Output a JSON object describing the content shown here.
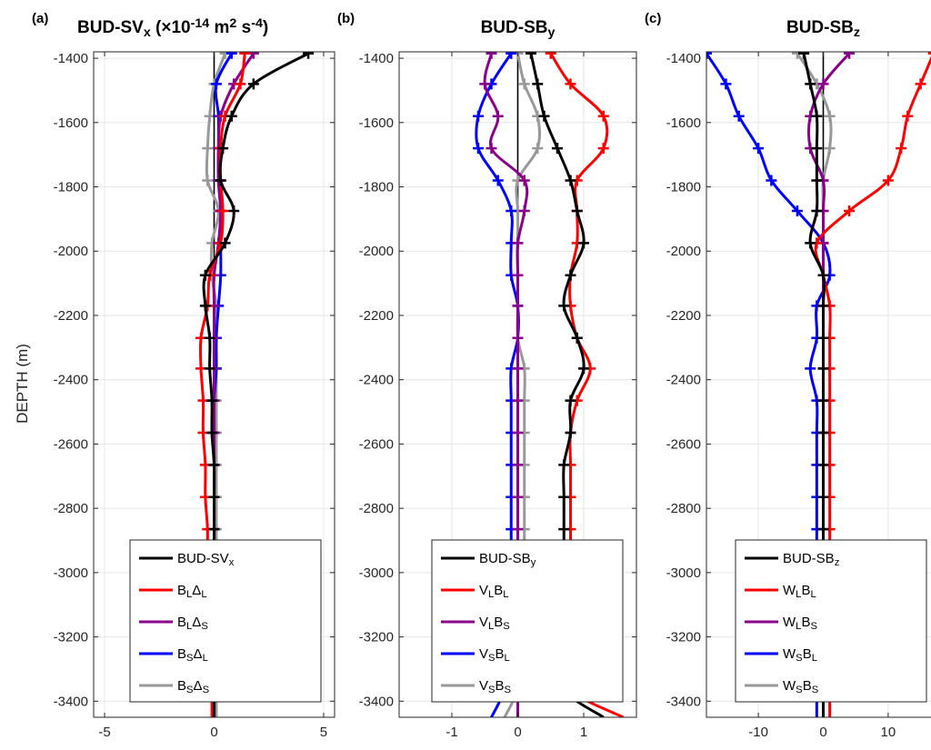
{
  "figure": {
    "ylabel": "DEPTH (m)",
    "panels": [
      {
        "label": "(a)",
        "title_main": "BUD-SV",
        "title_sub": "x",
        "title_units": " (×10",
        "title_units_exp": "-14",
        "title_units_mid": " m",
        "title_units_exp2": "2",
        "title_units_end": " s",
        "title_units_exp3": "-4",
        "title_units_close": ")"
      },
      {
        "label": "(b)",
        "title_main": "BUD-SB",
        "title_sub": "y"
      },
      {
        "label": "(c)",
        "title_main": "BUD-SB",
        "title_sub": "z"
      }
    ]
  },
  "chart_data": [
    {
      "type": "line",
      "panel": "a",
      "xlim": [
        -5.5,
        5.5
      ],
      "ylim": [
        -3450,
        -1380
      ],
      "xticks": [
        "-5",
        "0",
        "5"
      ],
      "xtick_values": [
        -5,
        0,
        5
      ],
      "yticks": [
        "-1400",
        "-1600",
        "-1800",
        "-2000",
        "-2200",
        "-2400",
        "-2600",
        "-2800",
        "-3000",
        "-3200",
        "-3400"
      ],
      "ytick_values": [
        -1400,
        -1600,
        -1800,
        -2000,
        -2200,
        -2400,
        -2600,
        -2800,
        -3000,
        -3200,
        -3400
      ],
      "grid": true,
      "legend_position": "bottom-right",
      "depths": [
        -1385,
        -1480,
        -1580,
        -1680,
        -1780,
        -1875,
        -1975,
        -2075,
        -2170,
        -2270,
        -2365,
        -2465,
        -2565,
        -2665,
        -2765,
        -2865,
        -2965,
        -3065,
        -3165,
        -3265,
        -3365,
        -3450
      ],
      "series": [
        {
          "name": "BUD-SV",
          "name_sub": "x",
          "color": "#000000",
          "values": [
            4.3,
            1.8,
            0.8,
            0.4,
            0.3,
            0.9,
            0.5,
            -0.4,
            -0.4,
            -0.2,
            -0.2,
            -0.1,
            -0.1,
            0.0,
            0.0,
            0.0,
            0.0,
            0.0,
            0.0,
            0.0,
            0.0,
            0.0
          ]
        },
        {
          "name": "B",
          "name_sub": "L",
          "name2": "Δ",
          "name2_sub": "L",
          "color": "#ff0000",
          "values": [
            1.4,
            1.2,
            0.5,
            0.3,
            0.3,
            0.4,
            0.3,
            -0.2,
            -0.3,
            -0.6,
            -0.6,
            -0.5,
            -0.5,
            -0.4,
            -0.4,
            -0.3,
            -0.3,
            -0.2,
            -0.2,
            -0.1,
            -0.1,
            -0.1
          ]
        },
        {
          "name": "B",
          "name_sub": "L",
          "name2": "Δ",
          "name2_sub": "S",
          "color": "#8b008b",
          "values": [
            1.8,
            0.9,
            0.3,
            0.2,
            0.2,
            0.3,
            0.2,
            0.0,
            0.0,
            0.0,
            0.0,
            0.0,
            0.0,
            0.0,
            0.0,
            0.0,
            0.0,
            0.0,
            0.0,
            0.0,
            0.0,
            0.0
          ]
        },
        {
          "name": "B",
          "name_sub": "S",
          "name2": "Δ",
          "name2_sub": "L",
          "color": "#0000ff",
          "values": [
            0.8,
            0.1,
            0.2,
            0.2,
            0.2,
            0.3,
            0.3,
            0.3,
            0.2,
            0.1,
            0.1,
            0.0,
            0.0,
            0.0,
            0.0,
            0.0,
            0.0,
            0.0,
            0.0,
            0.0,
            0.0,
            0.0
          ]
        },
        {
          "name": "B",
          "name_sub": "S",
          "name2": "Δ",
          "name2_sub": "S",
          "color": "#999999",
          "values": [
            0.5,
            0.0,
            -0.2,
            -0.3,
            -0.3,
            0.2,
            -0.1,
            -0.1,
            0.1,
            0.1,
            0.1,
            0.1,
            0.1,
            0.1,
            0.1,
            0.1,
            0.1,
            0.1,
            0.1,
            0.1,
            0.1,
            0.1
          ]
        }
      ]
    },
    {
      "type": "line",
      "panel": "b",
      "xlim": [
        -1.8,
        1.8
      ],
      "ylim": [
        -3450,
        -1380
      ],
      "xticks": [
        "-1",
        "0",
        "1"
      ],
      "xtick_values": [
        -1,
        0,
        1
      ],
      "yticks": [
        "-1400",
        "-1600",
        "-1800",
        "-2000",
        "-2200",
        "-2400",
        "-2600",
        "-2800",
        "-3000",
        "-3200",
        "-3400"
      ],
      "ytick_values": [
        -1400,
        -1600,
        -1800,
        -2000,
        -2200,
        -2400,
        -2600,
        -2800,
        -3000,
        -3200,
        -3400
      ],
      "grid": true,
      "legend_position": "bottom-right",
      "depths": [
        -1385,
        -1480,
        -1580,
        -1680,
        -1780,
        -1875,
        -1975,
        -2075,
        -2170,
        -2270,
        -2365,
        -2465,
        -2565,
        -2665,
        -2765,
        -2865,
        -2965,
        -3065,
        -3165,
        -3265,
        -3365,
        -3450
      ],
      "series": [
        {
          "name": "BUD-SB",
          "name_sub": "y",
          "color": "#000000",
          "values": [
            0.2,
            0.3,
            0.4,
            0.6,
            0.8,
            0.9,
            1.0,
            0.8,
            0.7,
            0.9,
            1.0,
            0.8,
            0.8,
            0.7,
            0.7,
            0.7,
            0.7,
            0.7,
            0.7,
            0.7,
            0.7,
            1.3
          ]
        },
        {
          "name": "V",
          "name_sub": "L",
          "name2": "B",
          "name2_sub": "L",
          "color": "#ff0000",
          "values": [
            0.5,
            0.8,
            1.3,
            1.3,
            0.9,
            0.9,
            0.9,
            0.8,
            0.8,
            0.9,
            1.1,
            0.9,
            0.8,
            0.8,
            0.8,
            0.8,
            0.8,
            0.8,
            0.8,
            0.8,
            0.8,
            1.6
          ]
        },
        {
          "name": "V",
          "name_sub": "L",
          "name2": "B",
          "name2_sub": "S",
          "color": "#8b008b",
          "values": [
            -0.4,
            -0.5,
            -0.3,
            -0.4,
            0.1,
            0.1,
            0.0,
            0.0,
            0.0,
            0.0,
            0.0,
            0.0,
            0.0,
            0.0,
            0.0,
            0.0,
            0.0,
            0.0,
            0.0,
            0.0,
            0.0,
            0.0
          ]
        },
        {
          "name": "V",
          "name_sub": "S",
          "name2": "B",
          "name2_sub": "L",
          "color": "#0000ff",
          "values": [
            -0.1,
            -0.4,
            -0.6,
            -0.6,
            -0.3,
            -0.1,
            -0.1,
            -0.1,
            0.0,
            0.0,
            -0.1,
            -0.1,
            -0.1,
            -0.1,
            -0.1,
            -0.1,
            -0.1,
            -0.1,
            -0.1,
            -0.1,
            -0.2,
            -0.4
          ]
        },
        {
          "name": "V",
          "name_sub": "S",
          "name2": "B",
          "name2_sub": "S",
          "color": "#999999",
          "values": [
            0.0,
            0.1,
            0.3,
            0.3,
            0.0,
            0.0,
            0.0,
            0.0,
            0.0,
            0.0,
            0.1,
            0.1,
            0.1,
            0.1,
            0.1,
            0.1,
            0.1,
            0.1,
            0.1,
            0.1,
            0.0,
            -0.2
          ]
        }
      ]
    },
    {
      "type": "line",
      "panel": "c",
      "xlim": [
        -18,
        18
      ],
      "ylim": [
        -3450,
        -1380
      ],
      "xticks": [
        "-10",
        "0",
        "10"
      ],
      "xtick_values": [
        -10,
        0,
        10
      ],
      "yticks": [
        "-1400",
        "-1600",
        "-1800",
        "-2000",
        "-2200",
        "-2400",
        "-2600",
        "-2800",
        "-3000",
        "-3200",
        "-3400"
      ],
      "ytick_values": [
        -1400,
        -1600,
        -1800,
        -2000,
        -2200,
        -2400,
        -2600,
        -2800,
        -3000,
        -3200,
        -3400
      ],
      "grid": true,
      "legend_position": "bottom-right",
      "depths": [
        -1385,
        -1480,
        -1580,
        -1680,
        -1780,
        -1875,
        -1975,
        -2075,
        -2170,
        -2270,
        -2365,
        -2465,
        -2565,
        -2665,
        -2765,
        -2865,
        -2965,
        -3065,
        -3165,
        -3265,
        -3365,
        -3450
      ],
      "series": [
        {
          "name": "BUD-SB",
          "name_sub": "z",
          "color": "#000000",
          "values": [
            -3,
            -2,
            -1,
            -1,
            -1,
            -1,
            -2,
            0,
            0,
            0,
            0,
            0,
            0,
            0,
            0,
            0,
            0,
            0,
            0,
            0,
            0,
            0
          ]
        },
        {
          "name": "W",
          "name_sub": "L",
          "name2": "B",
          "name2_sub": "L",
          "color": "#ff0000",
          "values": [
            17,
            15,
            13,
            12,
            10,
            4,
            -1,
            0,
            1,
            1,
            1,
            1,
            1,
            1,
            1,
            1,
            1,
            1,
            1,
            1,
            1,
            1
          ]
        },
        {
          "name": "W",
          "name_sub": "L",
          "name2": "B",
          "name2_sub": "S",
          "color": "#8b008b",
          "values": [
            4,
            0,
            -2,
            -2,
            0,
            0,
            0,
            0,
            0,
            0,
            0,
            0,
            0,
            0,
            0,
            0,
            0,
            0,
            0,
            0,
            0,
            0
          ]
        },
        {
          "name": "W",
          "name_sub": "S",
          "name2": "B",
          "name2_sub": "L",
          "color": "#0000ff",
          "values": [
            -18,
            -15,
            -13,
            -10,
            -8,
            -4,
            0,
            1,
            -1,
            -1,
            -2,
            -1,
            -1,
            -1,
            -1,
            -1,
            -1,
            -1,
            -1,
            -1,
            -1,
            -1
          ]
        },
        {
          "name": "W",
          "name_sub": "S",
          "name2": "B",
          "name2_sub": "S",
          "color": "#999999",
          "values": [
            -4,
            -1,
            1,
            1,
            0,
            0,
            0,
            0,
            0,
            0,
            0,
            0,
            0,
            0,
            0,
            0,
            0,
            0,
            0,
            0,
            0,
            0
          ]
        }
      ]
    }
  ]
}
